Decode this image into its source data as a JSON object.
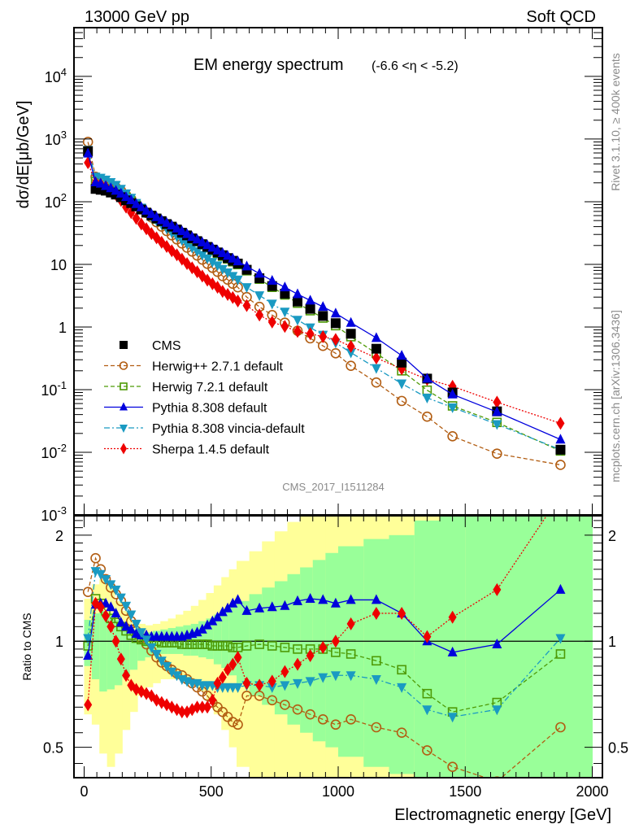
{
  "header": {
    "left": "13000 GeV pp",
    "right": "Soft QCD"
  },
  "side_text": {
    "rivet": "Rivet 3.1.10, ≥ 400k events",
    "mcplots": "mcplots.cern.ch [arXiv:1306.3436]"
  },
  "chart_data": [
    {
      "type": "scatter",
      "panel": "main",
      "title": "EM energy spectrum",
      "title_suffix": "(-6.6 <η < -5.2)",
      "ylabel": "dσ/dE[μb/GeV]",
      "xlabel": "",
      "yscale": "log",
      "ylim": [
        0.001,
        60000
      ],
      "xlim": [
        -40,
        2040
      ],
      "yticks": [
        {
          "v": 10000,
          "label": "10^4"
        },
        {
          "v": 1000,
          "label": "10^3"
        },
        {
          "v": 100,
          "label": "10^2"
        },
        {
          "v": 10,
          "label": "10"
        },
        {
          "v": 1,
          "label": "1"
        },
        {
          "v": 0.1,
          "label": "10^-1"
        },
        {
          "v": 0.01,
          "label": "10^-2"
        },
        {
          "v": 0.001,
          "label": "10^-3"
        }
      ],
      "watermark": "CMS_2017_I1511284",
      "legend_position": "bottom-left",
      "x": [
        15,
        45,
        65,
        85,
        105,
        125,
        145,
        165,
        185,
        205,
        225,
        245,
        265,
        285,
        305,
        325,
        345,
        365,
        385,
        405,
        425,
        445,
        465,
        485,
        505,
        525,
        545,
        565,
        585,
        605,
        640,
        690,
        740,
        790,
        840,
        890,
        940,
        990,
        1050,
        1150,
        1250,
        1350,
        1450,
        1625,
        1875
      ],
      "series": [
        {
          "name": "CMS",
          "color": "#000000",
          "marker": "square-filled",
          "line": "none",
          "values": [
            640,
            160,
            155,
            150,
            140,
            130,
            118,
            105,
            95,
            84,
            75,
            67,
            60,
            54,
            49,
            44,
            40,
            36,
            32,
            29,
            26,
            23.5,
            21,
            19,
            17.2,
            15.5,
            14,
            12.6,
            11.4,
            10.3,
            8.2,
            6.0,
            4.5,
            3.4,
            2.55,
            1.95,
            1.5,
            1.15,
            0.78,
            0.45,
            0.27,
            0.15,
            0.09,
            0.045,
            0.011
          ]
        },
        {
          "name": "Herwig++ 2.7.1 default",
          "color": "#b25d12",
          "marker": "circle-open",
          "line": "dashed",
          "values": [
            900,
            250,
            225,
            210,
            190,
            170,
            150,
            128,
            110,
            92,
            78,
            66,
            56,
            47,
            40,
            34,
            29,
            25,
            21.5,
            18.5,
            16,
            13.8,
            11.9,
            10.2,
            8.8,
            7.6,
            6.5,
            5.7,
            4.9,
            4.3,
            3.0,
            2.1,
            1.55,
            1.17,
            0.87,
            0.66,
            0.5,
            0.38,
            0.24,
            0.13,
            0.066,
            0.037,
            0.018,
            0.0095,
            0.0063
          ]
        },
        {
          "name": "Herwig 7.2.1 default",
          "color": "#4e9a06",
          "marker": "square-open",
          "line": "dashed",
          "values": [
            620,
            210,
            200,
            185,
            165,
            148,
            132,
            116,
            102,
            88,
            77,
            67,
            60,
            53,
            48,
            43,
            39,
            35,
            31.5,
            28.3,
            25.5,
            23,
            20.5,
            18.5,
            16.6,
            15,
            13.5,
            12.2,
            11,
            9.9,
            7.9,
            5.8,
            4.3,
            3.25,
            2.4,
            1.82,
            1.39,
            1.05,
            0.7,
            0.38,
            0.2,
            0.098,
            0.055,
            0.03,
            0.0105
          ]
        },
        {
          "name": "Pythia 8.308 default",
          "color": "#0000dd",
          "marker": "triangle-up-filled",
          "line": "solid",
          "values": [
            590,
            205,
            195,
            178,
            165,
            150,
            135,
            119,
            106,
            92,
            82,
            72,
            64,
            57,
            51,
            46,
            42,
            37.5,
            34,
            30.5,
            27.5,
            25,
            22.5,
            20.3,
            18.5,
            16.7,
            15.2,
            13.7,
            12.4,
            11.2,
            9.3,
            7.1,
            5.5,
            4.3,
            3.35,
            2.65,
            2.1,
            1.65,
            1.17,
            0.67,
            0.35,
            0.15,
            0.084,
            0.044,
            0.016
          ]
        },
        {
          "name": "Pythia 8.308 vincia-default",
          "color": "#1a9ac2",
          "marker": "triangle-down-filled",
          "line": "dashdot",
          "values": [
            670,
            250,
            240,
            225,
            205,
            185,
            160,
            135,
            115,
            95,
            80,
            68,
            58,
            50,
            43,
            37,
            32,
            27.8,
            24.2,
            21.1,
            18.4,
            16.1,
            14.1,
            12.4,
            10.9,
            9.6,
            8.4,
            7.4,
            6.5,
            5.7,
            4.3,
            3.2,
            2.35,
            1.75,
            1.3,
            0.98,
            0.75,
            0.56,
            0.39,
            0.22,
            0.125,
            0.074,
            0.052,
            0.028,
            0.011
          ]
        },
        {
          "name": "Sherpa 1.4.5 default",
          "color": "#ee0000",
          "marker": "diamond-filled",
          "line": "dotted",
          "values": [
            420,
            200,
            190,
            173,
            153,
            130,
            105,
            82,
            67,
            54,
            44,
            37,
            31,
            26.5,
            22.5,
            19.3,
            16.5,
            14.2,
            12.1,
            10.3,
            8.8,
            7.6,
            6.5,
            5.6,
            4.9,
            4.3,
            3.7,
            3.3,
            2.95,
            2.6,
            2.2,
            1.55,
            1.2,
            1.02,
            0.85,
            0.78,
            0.7,
            0.63,
            0.49,
            0.32,
            0.215,
            0.146,
            0.113,
            0.063,
            0.029
          ]
        }
      ]
    },
    {
      "type": "scatter",
      "panel": "ratio",
      "ylabel": "Ratio to CMS",
      "xlabel": "Electromagnetic energy [GeV]",
      "yscale": "log",
      "ylim": [
        0.41,
        2.27
      ],
      "xlim": [
        -40,
        2040
      ],
      "xticks": [
        0,
        500,
        1000,
        1500,
        2000
      ],
      "yticks": [
        {
          "v": 0.5,
          "label": "0.5"
        },
        {
          "v": 1,
          "label": "1"
        },
        {
          "v": 2,
          "label": "2"
        }
      ],
      "reference_line": 1,
      "bands": {
        "edges": [
          0,
          30,
          60,
          90,
          120,
          150,
          180,
          210,
          240,
          270,
          300,
          330,
          360,
          390,
          420,
          450,
          480,
          510,
          540,
          570,
          600,
          650,
          700,
          750,
          800,
          850,
          900,
          950,
          1000,
          1100,
          1200,
          1300,
          1400,
          1500,
          2000
        ],
        "inner_color": "#99ff99",
        "outer_color": "#ffff99",
        "inner_low": [
          0.85,
          0.78,
          0.72,
          0.73,
          0.75,
          0.79,
          0.83,
          0.88,
          0.9,
          0.91,
          0.92,
          0.92,
          0.92,
          0.91,
          0.91,
          0.9,
          0.89,
          0.86,
          0.84,
          0.8,
          0.76,
          0.7,
          0.66,
          0.62,
          0.58,
          0.55,
          0.52,
          0.5,
          0.47,
          0.44,
          0.42,
          0.41,
          0.41,
          0.41
        ],
        "inner_high": [
          1.15,
          1.2,
          1.22,
          1.2,
          1.15,
          1.1,
          1.08,
          1.06,
          1.06,
          1.07,
          1.08,
          1.09,
          1.1,
          1.11,
          1.12,
          1.14,
          1.16,
          1.19,
          1.22,
          1.26,
          1.3,
          1.36,
          1.42,
          1.48,
          1.55,
          1.62,
          1.7,
          1.78,
          1.86,
          1.95,
          2.0,
          2.2,
          2.27,
          2.27
        ],
        "outer_low": [
          0.62,
          0.58,
          0.48,
          0.44,
          0.48,
          0.56,
          0.63,
          0.7,
          0.74,
          0.76,
          0.78,
          0.78,
          0.78,
          0.77,
          0.75,
          0.72,
          0.68,
          0.62,
          0.56,
          0.5,
          0.44,
          0.41,
          0.41,
          0.41,
          0.41,
          0.41,
          0.41,
          0.41,
          0.41,
          0.41,
          0.41,
          0.41,
          0.41,
          0.41
        ],
        "outer_high": [
          1.32,
          1.45,
          1.5,
          1.45,
          1.3,
          1.22,
          1.15,
          1.12,
          1.11,
          1.12,
          1.14,
          1.16,
          1.19,
          1.22,
          1.26,
          1.31,
          1.37,
          1.44,
          1.52,
          1.6,
          1.69,
          1.8,
          1.92,
          2.05,
          2.18,
          2.27,
          2.27,
          2.27,
          2.27,
          2.27,
          2.27,
          2.27,
          2.27,
          2.27
        ]
      },
      "series": [
        {
          "name": "Herwig++ 2.7.1 default",
          "color": "#b25d12",
          "marker": "circle-open",
          "line": "dashed",
          "values": [
            1.38,
            1.72,
            1.6,
            1.5,
            1.42,
            1.36,
            1.3,
            1.22,
            1.14,
            1.07,
            1.02,
            0.98,
            0.94,
            0.9,
            0.87,
            0.85,
            0.83,
            0.81,
            0.8,
            0.78,
            0.76,
            0.74,
            0.72,
            0.7,
            0.67,
            0.65,
            0.63,
            0.61,
            0.59,
            0.58,
            0.7,
            0.7,
            0.68,
            0.66,
            0.64,
            0.62,
            0.6,
            0.58,
            0.6,
            0.57,
            0.55,
            0.49,
            0.44,
            0.4,
            0.57
          ]
        },
        {
          "name": "Herwig 7.2.1 default",
          "color": "#4e9a06",
          "marker": "square-open",
          "line": "dashed",
          "values": [
            0.97,
            1.32,
            1.28,
            1.22,
            1.16,
            1.13,
            1.1,
            1.07,
            1.04,
            1.02,
            1.01,
            1.0,
            1.0,
            1.0,
            0.99,
            0.99,
            0.99,
            0.99,
            0.98,
            0.98,
            0.98,
            0.98,
            0.98,
            0.98,
            0.97,
            0.97,
            0.97,
            0.97,
            0.96,
            0.96,
            0.97,
            0.98,
            0.97,
            0.96,
            0.95,
            0.95,
            0.95,
            0.93,
            0.92,
            0.88,
            0.83,
            0.71,
            0.63,
            0.67,
            0.92
          ]
        },
        {
          "name": "Pythia 8.308 default",
          "color": "#0000dd",
          "marker": "triangle-up-filled",
          "line": "solid",
          "values": [
            0.91,
            1.27,
            1.28,
            1.28,
            1.25,
            1.2,
            1.13,
            1.1,
            1.08,
            1.05,
            1.04,
            1.04,
            1.03,
            1.03,
            1.03,
            1.03,
            1.03,
            1.03,
            1.03,
            1.04,
            1.05,
            1.06,
            1.08,
            1.11,
            1.14,
            1.17,
            1.21,
            1.24,
            1.28,
            1.31,
            1.22,
            1.24,
            1.25,
            1.26,
            1.3,
            1.32,
            1.31,
            1.28,
            1.31,
            1.31,
            1.2,
            1.0,
            0.93,
            0.98,
            1.4
          ]
        },
        {
          "name": "Pythia 8.308 vincia-default",
          "color": "#1a9ac2",
          "marker": "triangle-down-filled",
          "line": "dashdot",
          "values": [
            1.02,
            1.58,
            1.55,
            1.5,
            1.45,
            1.4,
            1.33,
            1.26,
            1.19,
            1.12,
            1.06,
            1.01,
            0.96,
            0.92,
            0.88,
            0.85,
            0.82,
            0.8,
            0.78,
            0.77,
            0.76,
            0.76,
            0.75,
            0.75,
            0.75,
            0.74,
            0.74,
            0.74,
            0.74,
            0.74,
            0.75,
            0.75,
            0.74,
            0.75,
            0.76,
            0.77,
            0.79,
            0.8,
            0.8,
            0.78,
            0.74,
            0.64,
            0.61,
            0.64,
            1.02
          ]
        },
        {
          "name": "Sherpa 1.4.5 default",
          "color": "#ee0000",
          "marker": "diamond-filled",
          "line": "dotted",
          "values": [
            0.66,
            1.28,
            1.25,
            1.18,
            1.1,
            1.0,
            0.89,
            0.8,
            0.75,
            0.73,
            0.72,
            0.71,
            0.7,
            0.68,
            0.67,
            0.66,
            0.65,
            0.64,
            0.63,
            0.63,
            0.64,
            0.65,
            0.65,
            0.65,
            0.68,
            0.76,
            0.79,
            0.83,
            0.86,
            0.9,
            0.76,
            0.75,
            0.77,
            0.82,
            0.86,
            0.91,
            0.96,
            1.0,
            1.12,
            1.2,
            1.2,
            1.03,
            1.17,
            1.4,
            2.6
          ]
        }
      ]
    }
  ]
}
